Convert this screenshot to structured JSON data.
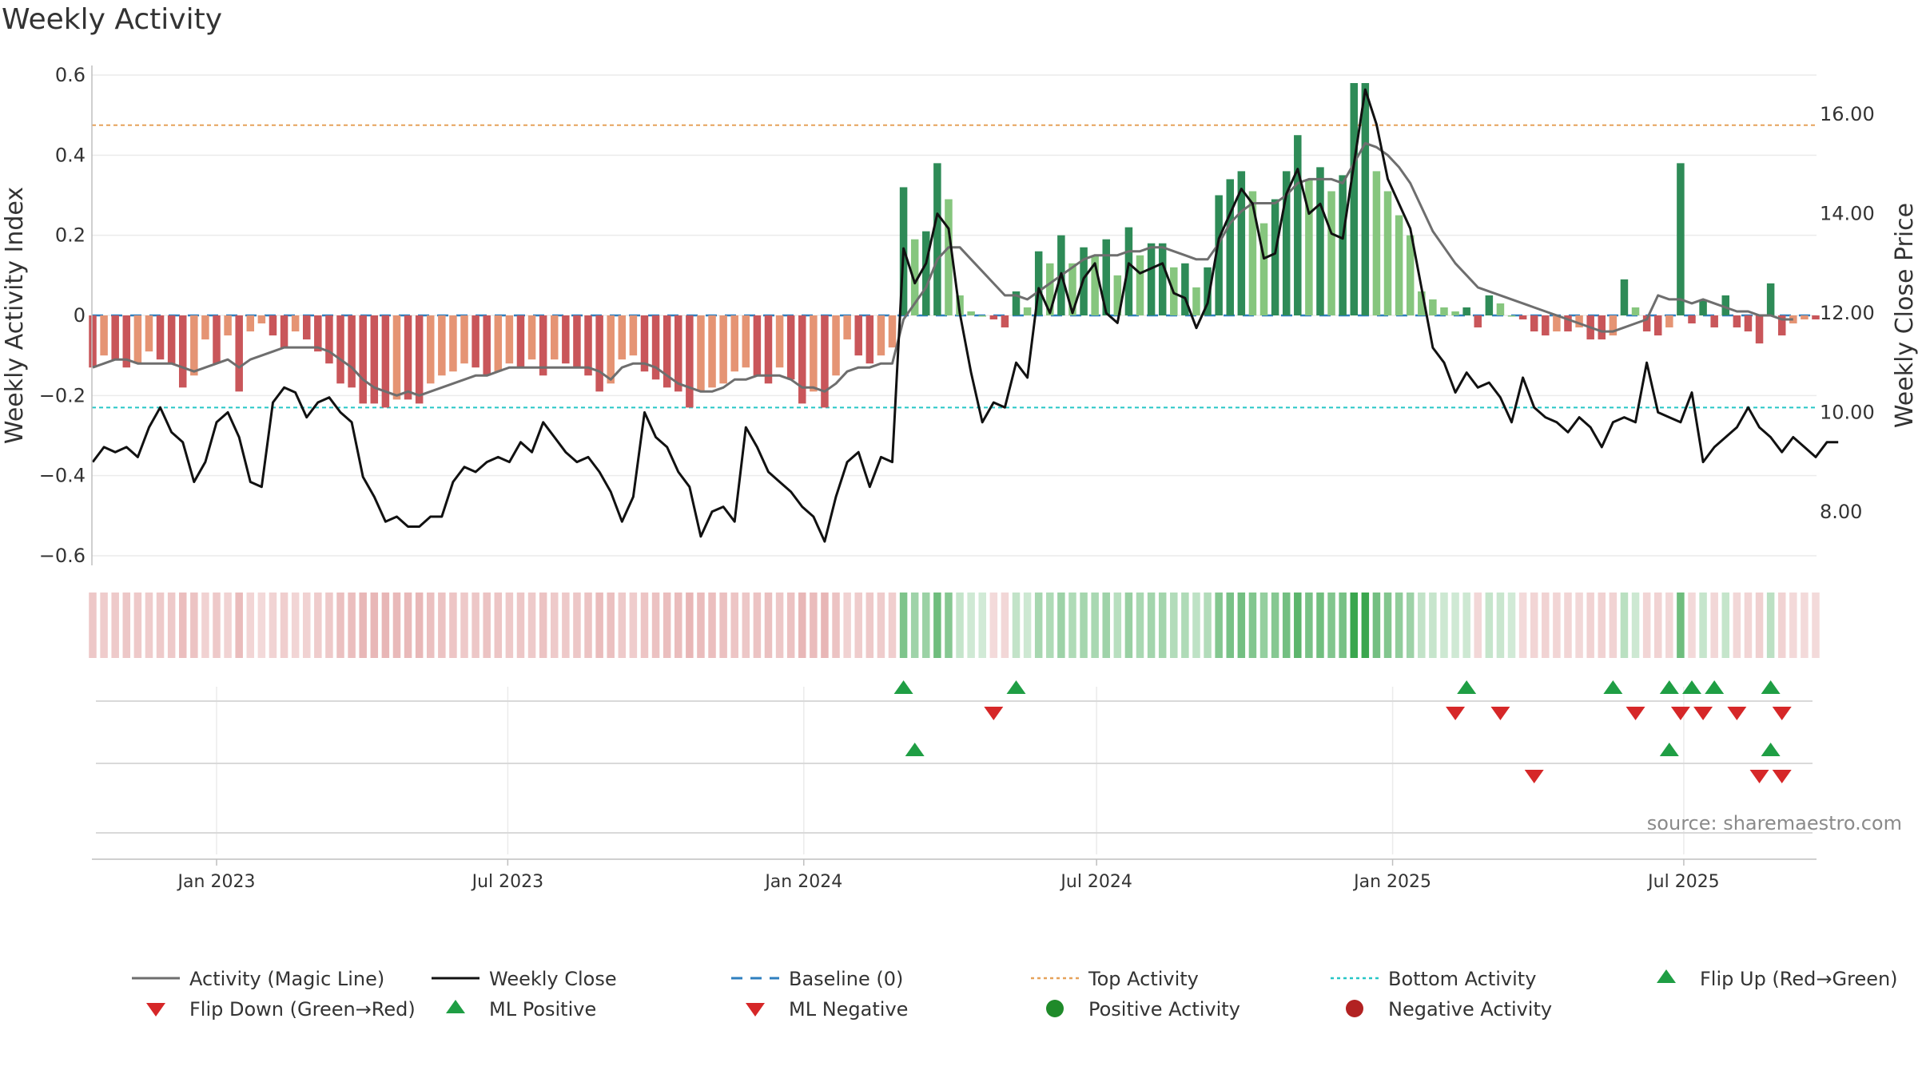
{
  "chart_data": {
    "type": "bar",
    "title": "Weekly Activity",
    "ylabel": "Weekly Activity Index",
    "ylabel_right": "Weekly Close Price",
    "ylim": [
      -0.62,
      0.62
    ],
    "ylim_right": [
      6.9,
      17.1
    ],
    "yticks": [
      {
        "v": 0.6,
        "label": "0.6"
      },
      {
        "v": 0.4,
        "label": "0.4"
      },
      {
        "v": 0.2,
        "label": "0.2"
      },
      {
        "v": 0,
        "label": "0"
      },
      {
        "v": -0.2,
        "label": "−0.2"
      },
      {
        "v": -0.4,
        "label": "−0.4"
      },
      {
        "v": -0.6,
        "label": "−0.6"
      }
    ],
    "yticks_right": [
      {
        "v": 16,
        "label": "16.00"
      },
      {
        "v": 14,
        "label": "14.00"
      },
      {
        "v": 12,
        "label": "12.00"
      },
      {
        "v": 10,
        "label": "10.00"
      },
      {
        "v": 8,
        "label": "8.00"
      }
    ],
    "x_start": "2022-10-16",
    "x_end": "2025-09-21",
    "week_count": 154,
    "xticks": [
      {
        "date": "2023-01-01",
        "label": "Jan 2023"
      },
      {
        "date": "2023-07-01",
        "label": "Jul 2023"
      },
      {
        "date": "2024-01-01",
        "label": "Jan 2024"
      },
      {
        "date": "2024-07-01",
        "label": "Jul 2024"
      },
      {
        "date": "2025-01-01",
        "label": "Jan 2025"
      },
      {
        "date": "2025-07-01",
        "label": "Jul 2025"
      }
    ],
    "activity": [
      -0.13,
      -0.1,
      -0.11,
      -0.13,
      -0.12,
      -0.09,
      -0.11,
      -0.12,
      -0.18,
      -0.15,
      -0.06,
      -0.12,
      -0.05,
      -0.19,
      -0.04,
      -0.02,
      -0.05,
      -0.08,
      -0.04,
      -0.06,
      -0.09,
      -0.12,
      -0.17,
      -0.18,
      -0.22,
      -0.22,
      -0.23,
      -0.21,
      -0.21,
      -0.22,
      -0.17,
      -0.15,
      -0.14,
      -0.12,
      -0.13,
      -0.15,
      -0.14,
      -0.12,
      -0.13,
      -0.11,
      -0.15,
      -0.11,
      -0.12,
      -0.13,
      -0.15,
      -0.19,
      -0.17,
      -0.11,
      -0.1,
      -0.14,
      -0.16,
      -0.18,
      -0.19,
      -0.23,
      -0.19,
      -0.18,
      -0.17,
      -0.14,
      -0.13,
      -0.15,
      -0.17,
      -0.13,
      -0.16,
      -0.22,
      -0.19,
      -0.23,
      -0.15,
      -0.06,
      -0.1,
      -0.12,
      -0.1,
      -0.08,
      0.32,
      0.19,
      0.21,
      0.38,
      0.29,
      0.05,
      0.01,
      0,
      -0.01,
      -0.03,
      0.06,
      0.02,
      0.16,
      0.13,
      0.2,
      0.13,
      0.17,
      0.15,
      0.19,
      0.1,
      0.22,
      0.15,
      0.18,
      0.18,
      0.12,
      0.13,
      0.07,
      0.12,
      0.3,
      0.34,
      0.36,
      0.31,
      0.23,
      0.29,
      0.36,
      0.45,
      0.34,
      0.37,
      0.31,
      0.35,
      0.58,
      0.58,
      0.36,
      0.31,
      0.25,
      0.2,
      0.06,
      0.04,
      0.02,
      0.01,
      0.02,
      -0.03,
      0.05,
      0.03,
      0,
      -0.01,
      -0.04,
      -0.05,
      -0.04,
      -0.04,
      -0.03,
      -0.06,
      -0.06,
      -0.05,
      0.09,
      0.02,
      -0.04,
      -0.05,
      -0.03,
      0.38,
      -0.02,
      0.04,
      -0.03,
      0.05,
      -0.03,
      -0.04,
      -0.07,
      0.08,
      -0.05,
      -0.02,
      -0.01,
      -0.01
    ],
    "magic_line": [
      -0.13,
      -0.12,
      -0.11,
      -0.11,
      -0.12,
      -0.12,
      -0.12,
      -0.12,
      -0.13,
      -0.14,
      -0.13,
      -0.12,
      -0.11,
      -0.13,
      -0.11,
      -0.1,
      -0.09,
      -0.08,
      -0.08,
      -0.08,
      -0.08,
      -0.09,
      -0.11,
      -0.13,
      -0.16,
      -0.18,
      -0.19,
      -0.2,
      -0.19,
      -0.2,
      -0.19,
      -0.18,
      -0.17,
      -0.16,
      -0.15,
      -0.15,
      -0.14,
      -0.13,
      -0.13,
      -0.13,
      -0.13,
      -0.13,
      -0.13,
      -0.13,
      -0.13,
      -0.14,
      -0.16,
      -0.13,
      -0.12,
      -0.12,
      -0.13,
      -0.15,
      -0.17,
      -0.18,
      -0.19,
      -0.19,
      -0.18,
      -0.16,
      -0.16,
      -0.15,
      -0.15,
      -0.15,
      -0.16,
      -0.18,
      -0.18,
      -0.19,
      -0.17,
      -0.14,
      -0.13,
      -0.13,
      -0.12,
      -0.12,
      -0.01,
      0.03,
      0.07,
      0.14,
      0.17,
      0.17,
      0.14,
      0.11,
      0.08,
      0.05,
      0.05,
      0.04,
      0.06,
      0.08,
      0.1,
      0.12,
      0.14,
      0.15,
      0.15,
      0.15,
      0.16,
      0.16,
      0.17,
      0.17,
      0.16,
      0.15,
      0.14,
      0.14,
      0.18,
      0.23,
      0.26,
      0.28,
      0.28,
      0.28,
      0.3,
      0.33,
      0.34,
      0.34,
      0.34,
      0.33,
      0.38,
      0.43,
      0.42,
      0.4,
      0.37,
      0.33,
      0.27,
      0.21,
      0.17,
      0.13,
      0.1,
      0.07,
      0.06,
      0.05,
      0.04,
      0.03,
      0.02,
      0.01,
      0,
      -0.01,
      -0.02,
      -0.03,
      -0.04,
      -0.04,
      -0.03,
      -0.02,
      -0.01,
      0.05,
      0.04,
      0.04,
      0.03,
      0.04,
      0.03,
      0.02,
      0.01,
      0.01,
      0,
      0,
      -0.01,
      -0.01
    ],
    "weekly_close": [
      9.0,
      9.3,
      9.2,
      9.3,
      9.1,
      9.7,
      10.1,
      9.6,
      9.4,
      8.6,
      9.0,
      9.8,
      10.0,
      9.5,
      8.6,
      8.5,
      10.2,
      10.5,
      10.4,
      9.9,
      10.2,
      10.3,
      10.0,
      9.8,
      8.7,
      8.3,
      7.8,
      7.9,
      7.7,
      7.7,
      7.9,
      7.9,
      8.6,
      8.9,
      8.8,
      9.0,
      9.1,
      9.0,
      9.4,
      9.2,
      9.8,
      9.5,
      9.2,
      9.0,
      9.1,
      8.8,
      8.4,
      7.8,
      8.3,
      10.0,
      9.5,
      9.3,
      8.8,
      8.5,
      7.5,
      8.0,
      8.1,
      7.8,
      9.7,
      9.3,
      8.8,
      8.6,
      8.4,
      8.1,
      7.9,
      7.4,
      8.3,
      9.0,
      9.2,
      8.5,
      9.1,
      9.0,
      13.3,
      12.6,
      13.0,
      14.0,
      13.7,
      12.0,
      10.8,
      9.8,
      10.2,
      10.1,
      11.0,
      10.7,
      12.5,
      12.0,
      12.8,
      12.0,
      12.7,
      13.0,
      12.0,
      11.8,
      13.0,
      12.8,
      12.9,
      13.0,
      12.4,
      12.3,
      11.7,
      12.2,
      13.5,
      14.0,
      14.5,
      14.2,
      13.1,
      13.2,
      14.4,
      14.9,
      14.0,
      14.2,
      13.6,
      13.5,
      15.0,
      16.5,
      15.8,
      14.7,
      14.2,
      13.7,
      12.5,
      11.3,
      11.0,
      10.4,
      10.8,
      10.5,
      10.6,
      10.3,
      9.8,
      10.7,
      10.1,
      9.9,
      9.8,
      9.6,
      9.9,
      9.7,
      9.3,
      9.8,
      9.9,
      9.8,
      11.0,
      10.0,
      9.9,
      9.8,
      10.4,
      9.0,
      9.3,
      9.5,
      9.7,
      10.1,
      9.7,
      9.5,
      9.2,
      9.5,
      9.3,
      9.1,
      9.4,
      9.4
    ],
    "top_activity": 0.475,
    "bottom_activity": -0.23,
    "baseline": 0,
    "flip_up_weeks": [
      72,
      82,
      122,
      135,
      140,
      142,
      144,
      149
    ],
    "flip_down_weeks": [
      80,
      121,
      125,
      137,
      141,
      143,
      146,
      150
    ],
    "ml_positive_weeks": [
      73,
      140,
      149
    ],
    "ml_negative_weeks": [
      128,
      148,
      150
    ],
    "source_text": "source: sharemaestro.com",
    "legend": [
      {
        "label": "Activity (Magic Line)",
        "marker": "line",
        "color": "#6e6e6e"
      },
      {
        "label": "Weekly Close",
        "marker": "line",
        "color": "#111111"
      },
      {
        "label": "Baseline (0)",
        "marker": "dash",
        "color": "#2f7fbf"
      },
      {
        "label": "Top Activity",
        "marker": "dot-line",
        "color": "#e6a25a"
      },
      {
        "label": "Bottom Activity",
        "marker": "dot-line",
        "color": "#26c6c6"
      },
      {
        "label": "Flip Up (Red→Green)",
        "marker": "triangle-up",
        "color": "#1f9e44"
      },
      {
        "label": "Flip Down (Green→Red)",
        "marker": "triangle-down",
        "color": "#d62728"
      },
      {
        "label": "ML Positive",
        "marker": "triangle-up",
        "color": "#1f9e44"
      },
      {
        "label": "ML Negative",
        "marker": "triangle-down",
        "color": "#d62728"
      },
      {
        "label": "Positive Activity",
        "marker": "circle",
        "color": "#1f8a2a"
      },
      {
        "label": "Negative Activity",
        "marker": "circle",
        "color": "#b22222"
      }
    ],
    "colors": {
      "pos_strong": "#2e8b57",
      "pos_light": "#86c67e",
      "neg_strong": "#c9565a",
      "neg_light": "#e59474",
      "grid": "#ebebeb"
    }
  }
}
